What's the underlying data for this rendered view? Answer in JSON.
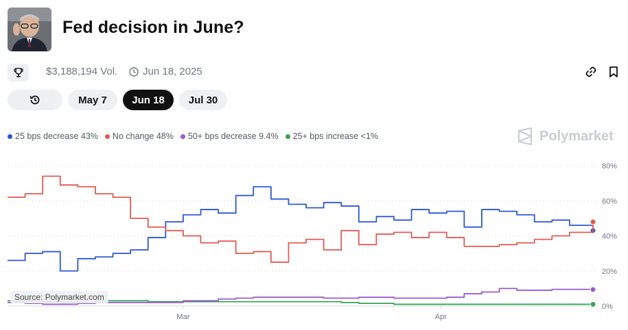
{
  "header": {
    "title": "Fed decision in June?",
    "volume": "$3,188,194 Vol.",
    "end_date": "Jun 18, 2025"
  },
  "tabs": [
    {
      "label": "May 7",
      "active": false
    },
    {
      "label": "Jun 18",
      "active": true
    },
    {
      "label": "Jul 30",
      "active": false
    }
  ],
  "brand": "Polymarket",
  "source": "Source: Polymarket.com",
  "chart_data": {
    "type": "line",
    "title": "",
    "xlabel": "",
    "ylabel": "",
    "ylim": [
      0,
      80
    ],
    "yticks": [
      "80%",
      "60%",
      "40%",
      "20%",
      "0%"
    ],
    "xticks": [
      "Mar",
      "Apr"
    ],
    "x": [
      0,
      3,
      6,
      9,
      12,
      15,
      18,
      21,
      24,
      27,
      30,
      33,
      36,
      39,
      42,
      45,
      48,
      51,
      54,
      57,
      60,
      63,
      66,
      69,
      72,
      75,
      78,
      81,
      84,
      87,
      90,
      93,
      96,
      100
    ],
    "series": [
      {
        "name": "25 bps decrease",
        "legend": "25 bps decrease 43%",
        "color": "#2b56d9",
        "values": [
          26,
          30,
          31,
          20,
          27,
          28,
          30,
          32,
          39,
          48,
          52,
          55,
          53,
          63,
          68,
          61,
          58,
          56,
          59,
          57,
          48,
          51,
          49,
          55,
          53,
          54,
          45,
          55,
          54,
          52,
          48,
          49,
          46,
          43
        ]
      },
      {
        "name": "No change",
        "legend": "No change 48%",
        "color": "#e05a52",
        "values": [
          62,
          64,
          74,
          69,
          68,
          64,
          62,
          50,
          45,
          43,
          40,
          36,
          37,
          30,
          31,
          25,
          36,
          38,
          32,
          43,
          35,
          41,
          42,
          39,
          42,
          39,
          34,
          34,
          35,
          36,
          38,
          40,
          42,
          48
        ]
      },
      {
        "name": "50+ bps decrease",
        "legend": "50+ bps decrease 9.4%",
        "color": "#9b59d0",
        "values": [
          2,
          1.5,
          1,
          1,
          1.5,
          2,
          2,
          2,
          2,
          2,
          3,
          3,
          4,
          4.5,
          5,
          5,
          5,
          5,
          4.5,
          4.5,
          5,
          5,
          4.5,
          4.5,
          4.5,
          5,
          7,
          8,
          10,
          9,
          9,
          9.5,
          9.5,
          9.4
        ]
      },
      {
        "name": "25+ bps increase",
        "legend": "25+ bps increase <1%",
        "color": "#31a354",
        "values": [
          3,
          3,
          2.5,
          2,
          2,
          3,
          3,
          3,
          2.5,
          2.5,
          2.5,
          2.5,
          2.5,
          2.5,
          2.5,
          2.5,
          2.5,
          2.5,
          2.5,
          2,
          1.5,
          1.5,
          1,
          1,
          1,
          1,
          1,
          1,
          1,
          1,
          1,
          1,
          1,
          1
        ]
      }
    ]
  }
}
